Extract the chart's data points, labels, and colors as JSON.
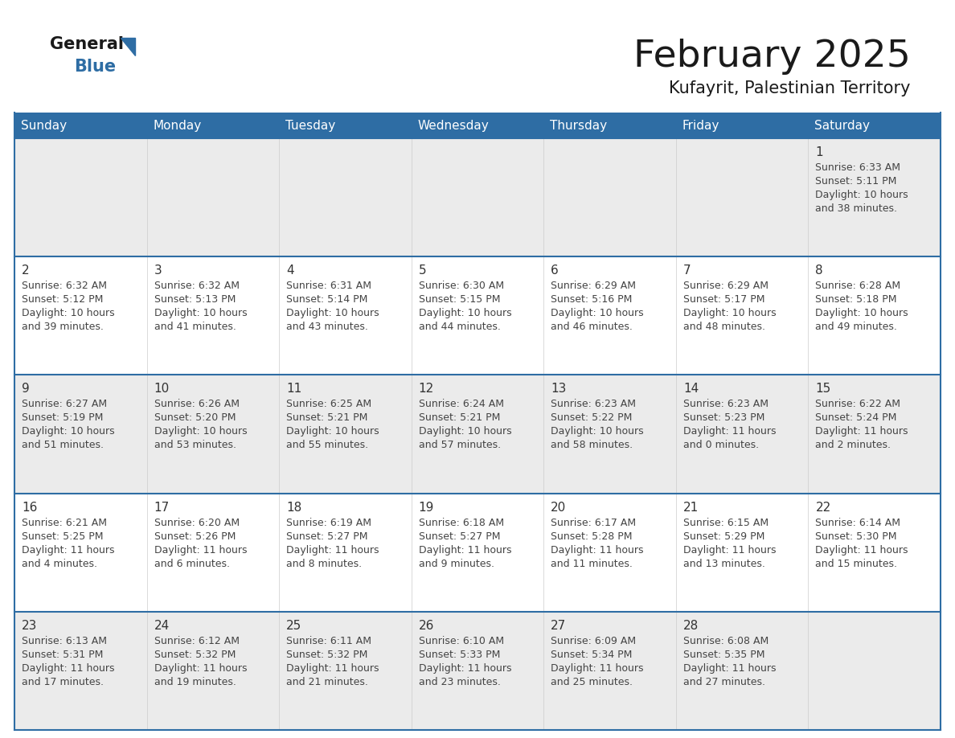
{
  "title": "February 2025",
  "subtitle": "Kufayrit, Palestinian Territory",
  "days_of_week": [
    "Sunday",
    "Monday",
    "Tuesday",
    "Wednesday",
    "Thursday",
    "Friday",
    "Saturday"
  ],
  "header_bg_color": "#2E6DA4",
  "header_text_color": "#FFFFFF",
  "cell_bg_color": "#EBEBEB",
  "cell_bg_white": "#FFFFFF",
  "border_color": "#2E6DA4",
  "day_number_color": "#333333",
  "text_color": "#444444",
  "title_color": "#1a1a1a",
  "calendar_data": [
    [
      null,
      null,
      null,
      null,
      null,
      null,
      {
        "day": 1,
        "sunrise": "6:33 AM",
        "sunset": "5:11 PM",
        "daylight_line1": "Daylight: 10 hours",
        "daylight_line2": "and 38 minutes."
      }
    ],
    [
      {
        "day": 2,
        "sunrise": "6:32 AM",
        "sunset": "5:12 PM",
        "daylight_line1": "Daylight: 10 hours",
        "daylight_line2": "and 39 minutes."
      },
      {
        "day": 3,
        "sunrise": "6:32 AM",
        "sunset": "5:13 PM",
        "daylight_line1": "Daylight: 10 hours",
        "daylight_line2": "and 41 minutes."
      },
      {
        "day": 4,
        "sunrise": "6:31 AM",
        "sunset": "5:14 PM",
        "daylight_line1": "Daylight: 10 hours",
        "daylight_line2": "and 43 minutes."
      },
      {
        "day": 5,
        "sunrise": "6:30 AM",
        "sunset": "5:15 PM",
        "daylight_line1": "Daylight: 10 hours",
        "daylight_line2": "and 44 minutes."
      },
      {
        "day": 6,
        "sunrise": "6:29 AM",
        "sunset": "5:16 PM",
        "daylight_line1": "Daylight: 10 hours",
        "daylight_line2": "and 46 minutes."
      },
      {
        "day": 7,
        "sunrise": "6:29 AM",
        "sunset": "5:17 PM",
        "daylight_line1": "Daylight: 10 hours",
        "daylight_line2": "and 48 minutes."
      },
      {
        "day": 8,
        "sunrise": "6:28 AM",
        "sunset": "5:18 PM",
        "daylight_line1": "Daylight: 10 hours",
        "daylight_line2": "and 49 minutes."
      }
    ],
    [
      {
        "day": 9,
        "sunrise": "6:27 AM",
        "sunset": "5:19 PM",
        "daylight_line1": "Daylight: 10 hours",
        "daylight_line2": "and 51 minutes."
      },
      {
        "day": 10,
        "sunrise": "6:26 AM",
        "sunset": "5:20 PM",
        "daylight_line1": "Daylight: 10 hours",
        "daylight_line2": "and 53 minutes."
      },
      {
        "day": 11,
        "sunrise": "6:25 AM",
        "sunset": "5:21 PM",
        "daylight_line1": "Daylight: 10 hours",
        "daylight_line2": "and 55 minutes."
      },
      {
        "day": 12,
        "sunrise": "6:24 AM",
        "sunset": "5:21 PM",
        "daylight_line1": "Daylight: 10 hours",
        "daylight_line2": "and 57 minutes."
      },
      {
        "day": 13,
        "sunrise": "6:23 AM",
        "sunset": "5:22 PM",
        "daylight_line1": "Daylight: 10 hours",
        "daylight_line2": "and 58 minutes."
      },
      {
        "day": 14,
        "sunrise": "6:23 AM",
        "sunset": "5:23 PM",
        "daylight_line1": "Daylight: 11 hours",
        "daylight_line2": "and 0 minutes."
      },
      {
        "day": 15,
        "sunrise": "6:22 AM",
        "sunset": "5:24 PM",
        "daylight_line1": "Daylight: 11 hours",
        "daylight_line2": "and 2 minutes."
      }
    ],
    [
      {
        "day": 16,
        "sunrise": "6:21 AM",
        "sunset": "5:25 PM",
        "daylight_line1": "Daylight: 11 hours",
        "daylight_line2": "and 4 minutes."
      },
      {
        "day": 17,
        "sunrise": "6:20 AM",
        "sunset": "5:26 PM",
        "daylight_line1": "Daylight: 11 hours",
        "daylight_line2": "and 6 minutes."
      },
      {
        "day": 18,
        "sunrise": "6:19 AM",
        "sunset": "5:27 PM",
        "daylight_line1": "Daylight: 11 hours",
        "daylight_line2": "and 8 minutes."
      },
      {
        "day": 19,
        "sunrise": "6:18 AM",
        "sunset": "5:27 PM",
        "daylight_line1": "Daylight: 11 hours",
        "daylight_line2": "and 9 minutes."
      },
      {
        "day": 20,
        "sunrise": "6:17 AM",
        "sunset": "5:28 PM",
        "daylight_line1": "Daylight: 11 hours",
        "daylight_line2": "and 11 minutes."
      },
      {
        "day": 21,
        "sunrise": "6:15 AM",
        "sunset": "5:29 PM",
        "daylight_line1": "Daylight: 11 hours",
        "daylight_line2": "and 13 minutes."
      },
      {
        "day": 22,
        "sunrise": "6:14 AM",
        "sunset": "5:30 PM",
        "daylight_line1": "Daylight: 11 hours",
        "daylight_line2": "and 15 minutes."
      }
    ],
    [
      {
        "day": 23,
        "sunrise": "6:13 AM",
        "sunset": "5:31 PM",
        "daylight_line1": "Daylight: 11 hours",
        "daylight_line2": "and 17 minutes."
      },
      {
        "day": 24,
        "sunrise": "6:12 AM",
        "sunset": "5:32 PM",
        "daylight_line1": "Daylight: 11 hours",
        "daylight_line2": "and 19 minutes."
      },
      {
        "day": 25,
        "sunrise": "6:11 AM",
        "sunset": "5:32 PM",
        "daylight_line1": "Daylight: 11 hours",
        "daylight_line2": "and 21 minutes."
      },
      {
        "day": 26,
        "sunrise": "6:10 AM",
        "sunset": "5:33 PM",
        "daylight_line1": "Daylight: 11 hours",
        "daylight_line2": "and 23 minutes."
      },
      {
        "day": 27,
        "sunrise": "6:09 AM",
        "sunset": "5:34 PM",
        "daylight_line1": "Daylight: 11 hours",
        "daylight_line2": "and 25 minutes."
      },
      {
        "day": 28,
        "sunrise": "6:08 AM",
        "sunset": "5:35 PM",
        "daylight_line1": "Daylight: 11 hours",
        "daylight_line2": "and 27 minutes."
      },
      null
    ]
  ]
}
